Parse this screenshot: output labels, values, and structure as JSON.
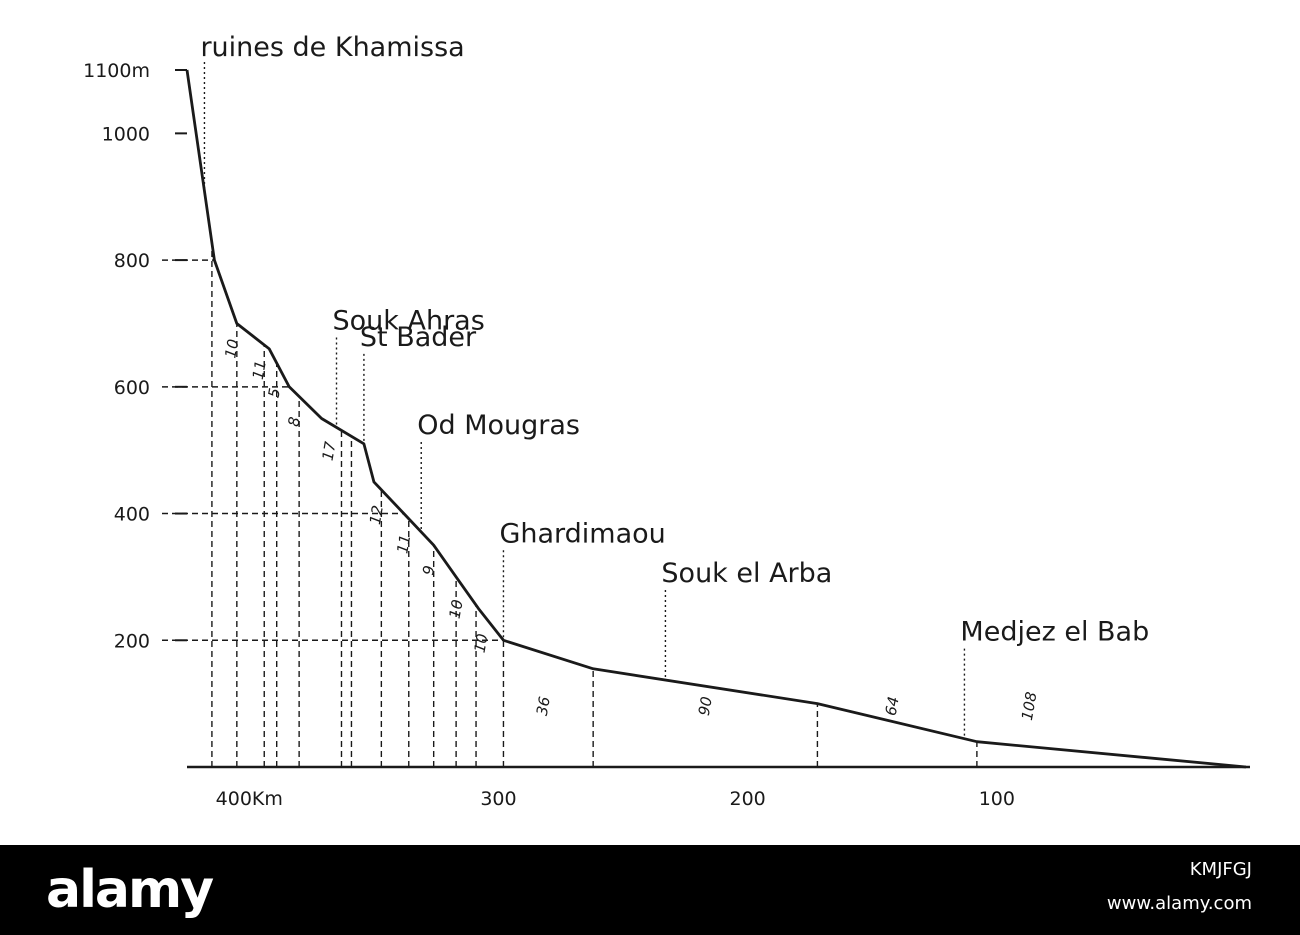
{
  "chart_data": {
    "type": "line",
    "x": [
      425,
      414,
      405,
      392,
      384,
      371,
      354,
      350,
      338,
      326,
      317,
      308,
      298,
      262,
      172,
      108,
      0
    ],
    "y": [
      1100,
      800,
      700,
      660,
      600,
      550,
      510,
      450,
      400,
      350,
      300,
      250,
      200,
      155,
      100,
      40,
      0
    ],
    "xlim": [
      0,
      425
    ],
    "ylim": [
      0,
      1100
    ],
    "x_reversed": true,
    "grid": false,
    "x_ticks": [
      {
        "value": 400,
        "label": "400Km"
      },
      {
        "value": 300,
        "label": "300"
      },
      {
        "value": 200,
        "label": "200"
      },
      {
        "value": 100,
        "label": "100"
      }
    ],
    "y_ticks": [
      {
        "value": 1100,
        "label": "1100m"
      },
      {
        "value": 1000,
        "label": "1000"
      },
      {
        "value": 800,
        "label": "800"
      },
      {
        "value": 600,
        "label": "600"
      },
      {
        "value": 400,
        "label": "400"
      },
      {
        "value": 200,
        "label": "200"
      }
    ],
    "stations": [
      {
        "name": "ruines de Khamissa",
        "x": 418
      },
      {
        "name": "Souk Ahras",
        "x": 365
      },
      {
        "name": "St Bader",
        "x": 354
      },
      {
        "name": "Od Mougras",
        "x": 331
      },
      {
        "name": "Ghardimaou",
        "x": 298
      },
      {
        "name": "Souk el Arba",
        "x": 233
      },
      {
        "name": "Medjez el Bab",
        "x": 113
      }
    ],
    "segment_lengths": [
      {
        "label": "10",
        "x": 405
      },
      {
        "label": "11",
        "x": 394
      },
      {
        "label": "5",
        "x": 388
      },
      {
        "label": "8",
        "x": 380
      },
      {
        "label": "17",
        "x": 366
      },
      {
        "label": "12",
        "x": 347
      },
      {
        "label": "11",
        "x": 336
      },
      {
        "label": "9",
        "x": 326
      },
      {
        "label": "10",
        "x": 315
      },
      {
        "label": "10",
        "x": 305
      },
      {
        "label": "36",
        "x": 280
      },
      {
        "label": "90",
        "x": 215
      },
      {
        "label": "64",
        "x": 140
      },
      {
        "label": "108",
        "x": 85
      }
    ],
    "vertical_drop_x": [
      415,
      405,
      394,
      389,
      380,
      363,
      359,
      347,
      336,
      326,
      317,
      309,
      298,
      262,
      172,
      108
    ],
    "horizontal_guides": [
      {
        "y": 800,
        "to_x": 414
      },
      {
        "y": 600,
        "to_x": 384
      },
      {
        "y": 400,
        "to_x": 338
      },
      {
        "y": 200,
        "to_x": 298
      }
    ]
  },
  "footer": {
    "brand": "alamy",
    "image_id": "KMJFGJ",
    "site": "www.alamy.com"
  },
  "colors": {
    "ink": "#1a1a1a",
    "paper": "#ffffff",
    "bar": "#000000"
  }
}
